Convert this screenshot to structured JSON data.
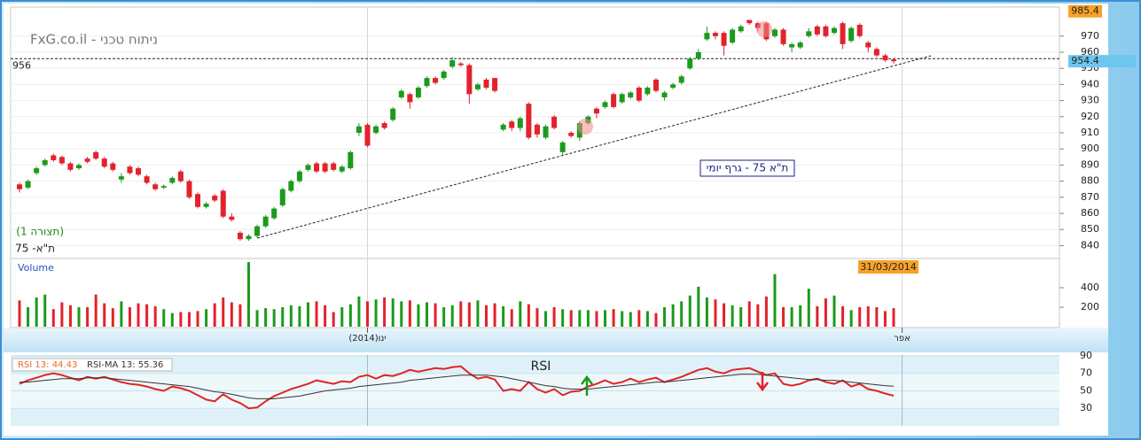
{
  "header": {
    "site": "FxG.co.il - ניתוח טכני"
  },
  "chart_data": {
    "type": "candlestick",
    "title": "ת\"א 75 - גרף יומי",
    "categories": [
      null,
      null,
      null,
      null,
      null,
      null,
      null,
      null,
      null,
      null,
      null,
      null,
      null,
      null,
      null,
      null,
      null,
      null,
      null,
      null,
      null,
      null,
      null,
      null,
      null,
      null,
      null,
      null,
      null,
      null,
      null,
      null,
      null,
      null,
      null,
      null,
      null,
      null,
      null,
      null,
      null,
      "(2014)ינו",
      null,
      null,
      null,
      null,
      null,
      null,
      null,
      null,
      null,
      null,
      null,
      null,
      null,
      null,
      null,
      null,
      null,
      null,
      null,
      null,
      null,
      null,
      null,
      null,
      null,
      null,
      null,
      null,
      null,
      null,
      null,
      null,
      null,
      null,
      null,
      null,
      null,
      null,
      null,
      null,
      null,
      null,
      null,
      null,
      null,
      null,
      null,
      null,
      null,
      null,
      null,
      null,
      null,
      null,
      null,
      null,
      null,
      null,
      null,
      null,
      null,
      null,
      "אפר"
    ],
    "open": [
      878,
      876,
      885,
      890,
      896,
      895,
      891,
      888,
      894,
      898,
      894,
      891,
      881,
      889,
      888,
      883,
      878,
      876,
      879,
      886,
      880,
      872,
      864,
      871,
      874,
      858,
      848,
      844,
      846,
      852,
      857,
      865,
      874,
      880,
      887,
      891,
      891,
      891,
      886,
      888,
      910,
      915,
      910,
      916,
      918,
      932,
      934,
      932,
      939,
      944,
      944,
      951,
      953,
      952,
      937,
      943,
      944,
      912,
      917,
      913,
      928,
      915,
      907,
      920,
      898,
      910,
      907,
      916,
      925,
      926,
      934,
      929,
      932,
      938,
      934,
      943,
      932,
      938,
      941,
      950,
      956,
      968,
      972,
      972,
      966,
      973,
      980,
      978,
      978,
      970,
      974,
      963,
      963,
      970,
      976,
      976,
      972,
      978,
      967,
      977,
      966,
      962,
      958,
      955.5,
      null
    ],
    "high": [
      879,
      881,
      889,
      894,
      897,
      896,
      892,
      891,
      895,
      899,
      895,
      892,
      885,
      890,
      889,
      884,
      879,
      878,
      883,
      887,
      881,
      873,
      867,
      872,
      875,
      860,
      849,
      847,
      853,
      859,
      864,
      876,
      881,
      887,
      891,
      892,
      892,
      892,
      890,
      899,
      916,
      916,
      915,
      917,
      926,
      937,
      935,
      939,
      945,
      945,
      949,
      957,
      954,
      953,
      941,
      944,
      944,
      916,
      918,
      920,
      929,
      916,
      915,
      921,
      905,
      911,
      917,
      921,
      926,
      930,
      935,
      935,
      936,
      939,
      939,
      944,
      936,
      941,
      946,
      957,
      962,
      976,
      973,
      973,
      975,
      977,
      980,
      979,
      979,
      975,
      975,
      966,
      967,
      975,
      977,
      977,
      976,
      979,
      976,
      978,
      967,
      963,
      959,
      956,
      null
    ],
    "low": [
      873,
      875,
      884,
      889,
      892,
      890,
      886,
      887,
      891,
      893,
      888,
      886,
      879,
      884,
      883,
      878,
      874,
      875,
      878,
      879,
      869,
      863,
      863,
      867,
      857,
      855,
      843,
      843,
      845,
      851,
      856,
      864,
      873,
      879,
      886,
      885,
      885,
      886,
      885,
      887,
      908,
      901,
      909,
      912,
      917,
      931,
      925,
      931,
      938,
      940,
      943,
      950,
      951,
      928,
      936,
      937,
      935,
      911,
      911,
      911,
      906,
      907,
      906,
      912,
      896,
      907,
      905,
      915,
      919,
      925,
      925,
      928,
      931,
      929,
      933,
      935,
      930,
      937,
      940,
      949,
      955,
      967,
      968,
      958,
      965,
      972,
      977,
      973,
      967,
      969,
      964,
      960,
      962,
      969,
      970,
      969,
      971,
      962,
      966,
      969,
      960,
      957,
      954,
      953,
      null
    ],
    "close": [
      875,
      880,
      888,
      893,
      893,
      891,
      887,
      890,
      892,
      894,
      889,
      887,
      883,
      885,
      884,
      879,
      875,
      877,
      882,
      880,
      870,
      864,
      866,
      868,
      858,
      856,
      844,
      846,
      852,
      858,
      863,
      875,
      880,
      886,
      890,
      886,
      886,
      887,
      889,
      898,
      914,
      902,
      914,
      913,
      925,
      936,
      929,
      938,
      944,
      941,
      948,
      955,
      952,
      934,
      940,
      938,
      936,
      915,
      913,
      919,
      907,
      909,
      914,
      913,
      904,
      908,
      916,
      920,
      922,
      929,
      926,
      934,
      935,
      930,
      938,
      936,
      935,
      940,
      945,
      956,
      960,
      972,
      970,
      964,
      974,
      976,
      978,
      975,
      968,
      974,
      965,
      965,
      966,
      973,
      971,
      970,
      975,
      965,
      975,
      970,
      963,
      958,
      955,
      954.4,
      null
    ],
    "ylim": [
      832,
      988
    ],
    "yticks": [
      840,
      850,
      860,
      870,
      880,
      890,
      900,
      910,
      920,
      930,
      940,
      950,
      960,
      970
    ],
    "up_color": "#1c9a1c",
    "down_color": "#e3222b",
    "reference_line": {
      "value": 956
    },
    "max_label": 985.4,
    "last_date": "31/03/2014",
    "annotations": [
      "(תצורה 1)",
      "ת\"א- 75"
    ],
    "volume": {
      "label": "Volume",
      "ylim": [
        0,
        700
      ],
      "yticks": [
        200,
        400
      ],
      "values": [
        270,
        200,
        300,
        330,
        180,
        250,
        220,
        200,
        200,
        330,
        240,
        190,
        260,
        200,
        240,
        230,
        210,
        180,
        140,
        150,
        150,
        160,
        180,
        240,
        300,
        250,
        230,
        663,
        170,
        190,
        180,
        200,
        220,
        210,
        250,
        260,
        220,
        150,
        200,
        230,
        310,
        260,
        280,
        300,
        290,
        260,
        270,
        230,
        250,
        240,
        200,
        220,
        260,
        250,
        270,
        220,
        240,
        210,
        180,
        260,
        230,
        190,
        160,
        200,
        180,
        170,
        170,
        170,
        160,
        170,
        180,
        160,
        150,
        170,
        160,
        140,
        200,
        230,
        260,
        320,
        410,
        300,
        280,
        240,
        220,
        200,
        260,
        230,
        310,
        540,
        200,
        200,
        220,
        390,
        210,
        290,
        320,
        210,
        170,
        200,
        210,
        200,
        160,
        190,
        null
      ]
    },
    "rsi": {
      "title": "RSI",
      "ylim": [
        10,
        91
      ],
      "yticks": [
        30,
        50,
        70,
        90
      ],
      "series": [
        {
          "name": "RSI 13: 44.43",
          "color": "#e02424",
          "values": [
            58,
            62,
            65,
            68,
            70,
            68,
            65,
            62,
            66,
            64,
            66,
            63,
            60,
            58,
            57,
            55,
            52,
            50,
            55,
            53,
            50,
            45,
            40,
            38,
            46,
            40,
            36,
            30,
            31,
            38,
            44,
            48,
            52,
            55,
            58,
            62,
            60,
            58,
            61,
            60,
            66,
            68,
            64,
            68,
            67,
            70,
            74,
            72,
            74,
            76,
            75,
            77,
            78,
            70,
            64,
            66,
            63,
            50,
            52,
            50,
            60,
            52,
            48,
            52,
            45,
            49,
            50,
            55,
            58,
            62,
            58,
            60,
            64,
            60,
            63,
            65,
            60,
            63,
            66,
            70,
            74,
            76,
            72,
            70,
            74,
            75,
            76,
            72,
            68,
            70,
            58,
            56,
            58,
            62,
            64,
            60,
            58,
            62,
            55,
            58,
            52,
            50,
            47,
            44.43,
            null
          ]
        },
        {
          "name": "RSI-MA 13: 55.36",
          "color": "#333333",
          "values": [
            60,
            60,
            61,
            62,
            63,
            64,
            64,
            64,
            65,
            65,
            65,
            64,
            63,
            62,
            61,
            60,
            59,
            58,
            57,
            56,
            55,
            53,
            51,
            49,
            48,
            46,
            44,
            42,
            41,
            41,
            41,
            42,
            43,
            44,
            46,
            48,
            50,
            51,
            52,
            53,
            55,
            56,
            57,
            58,
            59,
            60,
            62,
            63,
            64,
            65,
            66,
            67,
            68,
            68,
            68,
            68,
            67,
            66,
            64,
            62,
            60,
            58,
            56,
            55,
            53,
            52,
            52,
            52,
            53,
            54,
            55,
            56,
            57,
            58,
            59,
            60,
            60,
            61,
            62,
            63,
            64,
            65,
            66,
            67,
            68,
            69,
            69,
            69,
            68,
            67,
            66,
            65,
            64,
            63,
            63,
            62,
            62,
            61,
            60,
            59,
            58,
            57,
            56,
            55.36,
            null
          ]
        }
      ]
    }
  }
}
